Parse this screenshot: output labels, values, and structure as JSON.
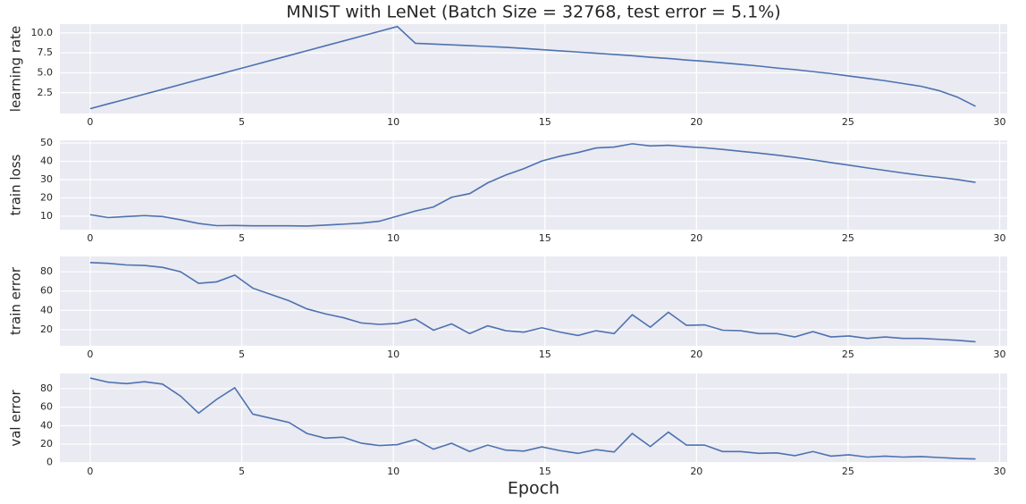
{
  "chart_data": [
    {
      "type": "line",
      "title": "MNIST with LeNet (Batch Size = 32768, test error = 5.1%)",
      "ylabel": "learning rate",
      "color": "#4c72b0",
      "grid": true,
      "x": [
        0,
        0.596,
        1.192,
        1.788,
        2.384,
        2.98,
        3.576,
        4.172,
        4.768,
        5.364,
        5.96,
        6.556,
        7.152,
        7.748,
        8.344,
        8.94,
        9.536,
        10.132,
        10.728,
        11.324,
        11.92,
        12.516,
        13.112,
        13.708,
        14.304,
        14.9,
        15.496,
        16.092,
        16.688,
        17.284,
        17.88,
        18.476,
        19.072,
        19.668,
        20.264,
        20.86,
        21.456,
        22.052,
        22.648,
        23.244,
        23.84,
        24.436,
        25.032,
        25.628,
        26.224,
        26.82,
        27.416,
        28.012,
        28.608,
        29.204
      ],
      "values": [
        0.5,
        1.11,
        1.71,
        2.32,
        2.92,
        3.53,
        4.14,
        4.74,
        5.35,
        5.95,
        6.56,
        7.16,
        7.77,
        8.38,
        8.98,
        9.59,
        10.19,
        10.8,
        8.7,
        8.6,
        8.5,
        8.4,
        8.3,
        8.2,
        8.05,
        7.9,
        7.75,
        7.6,
        7.45,
        7.3,
        7.15,
        6.95,
        6.8,
        6.6,
        6.45,
        6.25,
        6.05,
        5.85,
        5.6,
        5.4,
        5.15,
        4.9,
        4.6,
        4.3,
        4.0,
        3.65,
        3.3,
        2.75,
        1.95,
        0.8
      ],
      "xlim": [
        -1,
        30.25
      ],
      "xticks": [
        0,
        5,
        10,
        15,
        20,
        25,
        30
      ],
      "ylim": [
        -0.1,
        11.1
      ],
      "yticks": [
        {
          "value": 2.5,
          "label": "2.5"
        },
        {
          "value": 5,
          "label": "5.0"
        },
        {
          "value": 7.5,
          "label": "7.5"
        },
        {
          "value": 10,
          "label": "10.0"
        }
      ]
    },
    {
      "type": "line",
      "ylabel": "train loss",
      "color": "#4c72b0",
      "grid": true,
      "x": [
        0,
        0.596,
        1.192,
        1.788,
        2.384,
        2.98,
        3.576,
        4.172,
        4.768,
        5.364,
        5.96,
        6.556,
        7.152,
        7.748,
        8.344,
        8.94,
        9.536,
        10.132,
        10.728,
        11.324,
        11.92,
        12.516,
        13.112,
        13.708,
        14.304,
        14.9,
        15.496,
        16.092,
        16.688,
        17.284,
        17.88,
        18.476,
        19.072,
        19.668,
        20.264,
        20.86,
        21.456,
        22.052,
        22.648,
        23.244,
        23.84,
        24.436,
        25.032,
        25.628,
        26.224,
        26.82,
        27.416,
        28.012,
        28.608,
        29.204
      ],
      "values": [
        10.8,
        9.2,
        9.8,
        10.3,
        9.8,
        8.0,
        6.0,
        4.8,
        4.9,
        4.7,
        4.7,
        4.7,
        4.6,
        5.1,
        5.6,
        6.2,
        7.2,
        10.0,
        12.8,
        15.0,
        20.3,
        22.3,
        28.2,
        32.5,
        36.0,
        40.2,
        42.8,
        44.8,
        47.3,
        47.8,
        49.6,
        48.4,
        48.8,
        48.0,
        47.4,
        46.5,
        45.5,
        44.5,
        43.4,
        42.2,
        40.8,
        39.3,
        37.9,
        36.4,
        35.0,
        33.6,
        32.3,
        31.2,
        30.0,
        28.5
      ],
      "xlim": [
        -1,
        30.25
      ],
      "xticks": [
        0,
        5,
        10,
        15,
        20,
        25,
        30
      ],
      "ylim": [
        2.6,
        51.5
      ],
      "yticks": [
        10,
        20,
        30,
        40,
        50
      ]
    },
    {
      "type": "line",
      "ylabel": "train error",
      "color": "#4c72b0",
      "grid": true,
      "x": [
        0,
        0.596,
        1.192,
        1.788,
        2.384,
        2.98,
        3.576,
        4.172,
        4.768,
        5.364,
        5.96,
        6.556,
        7.152,
        7.748,
        8.344,
        8.94,
        9.536,
        10.132,
        10.728,
        11.324,
        11.92,
        12.516,
        13.112,
        13.708,
        14.304,
        14.9,
        15.496,
        16.092,
        16.688,
        17.284,
        17.88,
        18.476,
        19.072,
        19.668,
        20.264,
        20.86,
        21.456,
        22.052,
        22.648,
        23.244,
        23.84,
        24.436,
        25.032,
        25.628,
        26.224,
        26.82,
        27.416,
        28.012,
        28.608,
        29.204
      ],
      "values": [
        89.5,
        88.7,
        87,
        86.5,
        84.5,
        80,
        68,
        69.5,
        76.5,
        63,
        56.5,
        50,
        41.5,
        36.5,
        32.5,
        27,
        25.5,
        26.5,
        31,
        19.5,
        26,
        16,
        24,
        19,
        17.5,
        22,
        17.5,
        14,
        19,
        16,
        35.5,
        22.5,
        38,
        24.5,
        25,
        19.5,
        19,
        16,
        16,
        12.5,
        18,
        12.5,
        13.5,
        11,
        12.5,
        11,
        11,
        10,
        9,
        7.5
      ],
      "xlim": [
        -1,
        30.25
      ],
      "xticks": [
        0,
        5,
        10,
        15,
        20,
        25,
        30
      ],
      "ylim": [
        3.3,
        95.8
      ],
      "yticks": [
        20,
        40,
        60,
        80
      ]
    },
    {
      "type": "line",
      "ylabel": "val error",
      "xlabel": "Epoch",
      "color": "#4c72b0",
      "grid": true,
      "x": [
        0,
        0.596,
        1.192,
        1.788,
        2.384,
        2.98,
        3.576,
        4.172,
        4.768,
        5.364,
        5.96,
        6.556,
        7.152,
        7.748,
        8.344,
        8.94,
        9.536,
        10.132,
        10.728,
        11.324,
        11.92,
        12.516,
        13.112,
        13.708,
        14.304,
        14.9,
        15.496,
        16.092,
        16.688,
        17.284,
        17.88,
        18.476,
        19.072,
        19.668,
        20.264,
        20.86,
        21.456,
        22.052,
        22.648,
        23.244,
        23.84,
        24.436,
        25.032,
        25.628,
        26.224,
        26.82,
        27.416,
        28.012,
        28.608,
        29.204
      ],
      "values": [
        91.5,
        87,
        85.5,
        87.5,
        85,
        72,
        53.5,
        68.5,
        81,
        52.5,
        48,
        43.5,
        31.5,
        26.5,
        27.5,
        21,
        18.5,
        19.5,
        25,
        14.5,
        21,
        12,
        19,
        13.5,
        12.5,
        17,
        13,
        10,
        14,
        11.5,
        31.5,
        17.5,
        33,
        19,
        19,
        12,
        12,
        10,
        10.5,
        7.5,
        12,
        7,
        8.5,
        6,
        7,
        6,
        6.5,
        5.5,
        4.5,
        4
      ],
      "xlim": [
        -1,
        30.25
      ],
      "xticks": [
        0,
        5,
        10,
        15,
        20,
        25,
        30
      ],
      "ylim": [
        -0.3,
        96.4
      ],
      "yticks": [
        0,
        20,
        40,
        60,
        80
      ]
    }
  ]
}
